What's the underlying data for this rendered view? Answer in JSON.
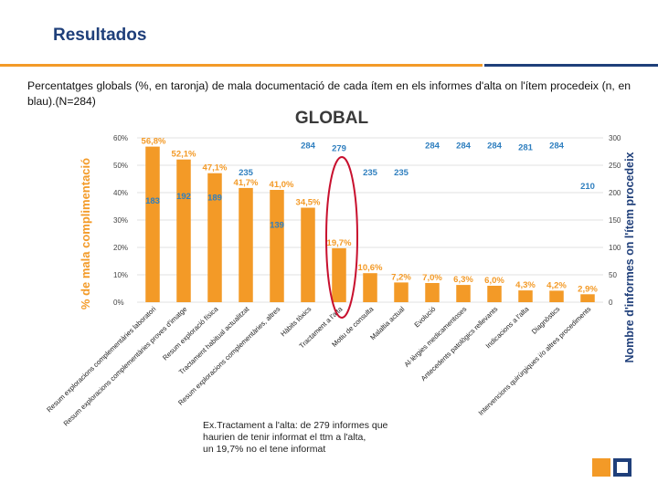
{
  "slide": {
    "title": "Resultados",
    "description": "Percentatges globals (%, en taronja) de mala documentació de cada ítem en els informes d'alta on l'ítem procedeix (n, en blau).(N=284)"
  },
  "colors": {
    "bar": "#f39a27",
    "count": "#2f7fbf",
    "accent_blue": "#1f3f7a",
    "grid": "#d9d9d9",
    "highlight": "#c8102e"
  },
  "chart_data": {
    "type": "bar",
    "title": "GLOBAL",
    "ylabel": "% de mala complimentació",
    "y2label": "Nombre d'informes on l'ítem procedeix",
    "ylim": [
      0,
      60
    ],
    "y2lim": [
      0,
      300
    ],
    "yticks": [
      "0%",
      "10%",
      "20%",
      "30%",
      "40%",
      "50%",
      "60%"
    ],
    "y2ticks": [
      "0",
      "50",
      "100",
      "150",
      "200",
      "250",
      "300"
    ],
    "categories": [
      "Resum exploracions complementàries laboratori",
      "Resum exploracions complementàries proves d'imatge",
      "Resum exploració física",
      "Tractament habitual actualitzat",
      "Resum exploracions complementàries, altres",
      "Hàbits tòxics",
      "Tractament a l'alta",
      "Motiu de consulta",
      "Malaltia actual",
      "Evolució",
      "Al·lèrgies medicamentoses",
      "Antecedents patològics rellevants",
      "Indicacions a l'alta",
      "Diagnòstics",
      "Intervencions quirúrgiques i/o altres procediments"
    ],
    "series": [
      {
        "name": "% de mala complimentació",
        "values": [
          56.8,
          52.1,
          47.1,
          41.7,
          41.0,
          34.5,
          19.7,
          10.6,
          7.2,
          7.0,
          6.3,
          6.0,
          4.3,
          4.2,
          2.9
        ],
        "labels": [
          "56,8%",
          "52,1%",
          "47,1%",
          "41,7%",
          "41,0%",
          "34,5%",
          "19,7%",
          "10,6%",
          "7,2%",
          "7,0%",
          "6,3%",
          "6,0%",
          "4,3%",
          "4,2%",
          "2,9%"
        ]
      },
      {
        "name": "Nombre d'informes on l'ítem procedeix",
        "values": [
          183,
          192,
          189,
          235,
          139,
          284,
          279,
          235,
          235,
          284,
          284,
          284,
          281,
          284,
          210
        ],
        "labels": [
          "183",
          "192",
          "189",
          "235",
          "139",
          "284",
          "279",
          "235",
          "235",
          "284",
          "284",
          "284",
          "281",
          "284",
          "210"
        ]
      }
    ],
    "highlighted_category": "Tractament a l'alta",
    "note": "Ex.Tractament a l'alta: de 279 informes que haurien de tenir informat el ttm a l'alta, un 19,7% no el tene informat"
  }
}
